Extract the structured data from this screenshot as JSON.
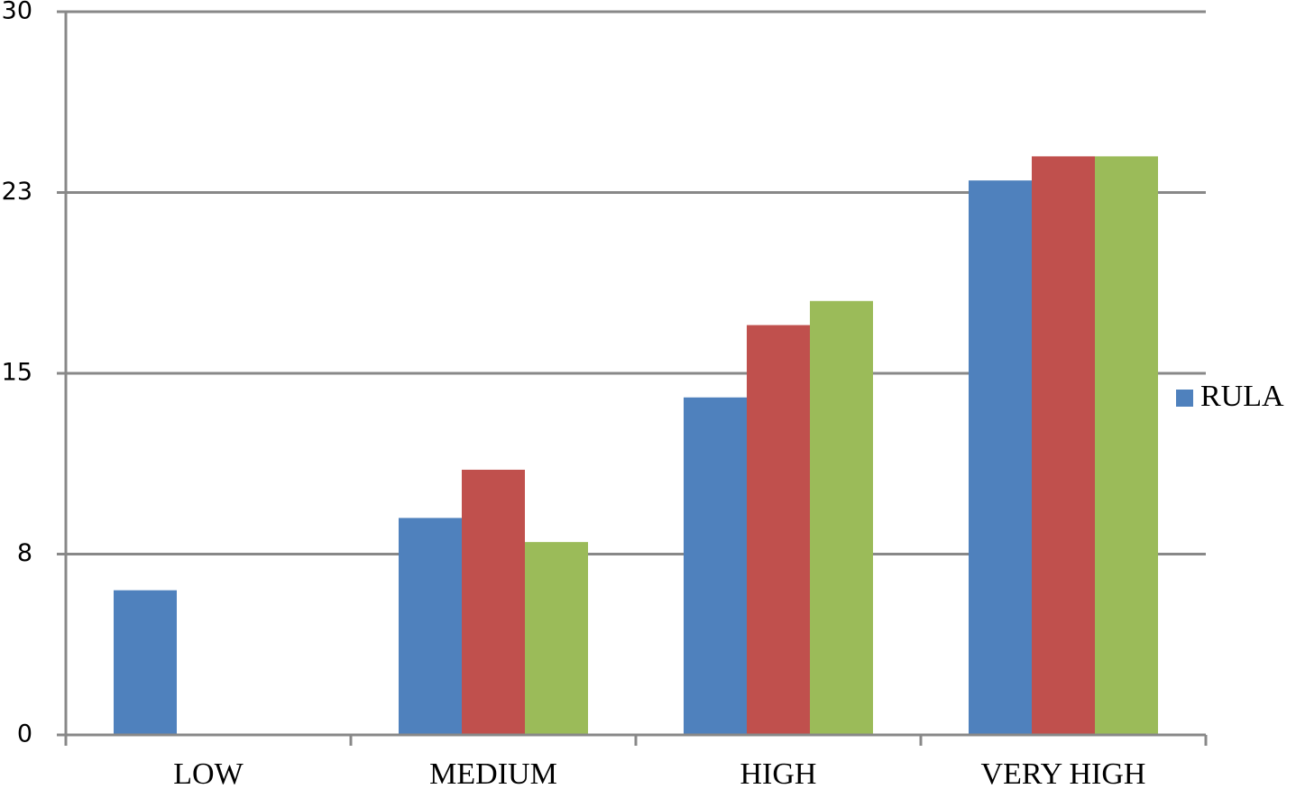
{
  "chart_data": {
    "type": "bar",
    "categories": [
      "LOW",
      "MEDIUM",
      "HIGH",
      "VERY HIGH"
    ],
    "series": [
      {
        "name": "RULA",
        "color": "#4f81bd",
        "values": [
          6,
          9,
          14,
          23
        ]
      },
      {
        "color": "#c0504d",
        "values": [
          0,
          11,
          17,
          24
        ]
      },
      {
        "color": "#9bbb59",
        "values": [
          0,
          8,
          18,
          24
        ]
      }
    ],
    "ylim": [
      0,
      30
    ],
    "yticks": [
      0,
      {
        "value": 7.5,
        "label": "8"
      },
      15,
      {
        "value": 22.5,
        "label": "23"
      },
      30
    ],
    "grid": true,
    "legend": "right"
  }
}
